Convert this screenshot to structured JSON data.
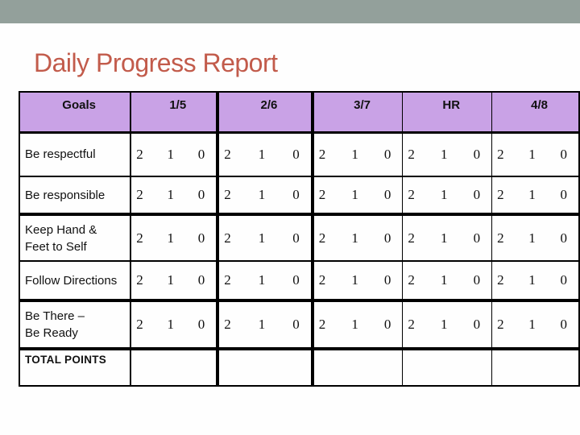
{
  "slide": {
    "title": "Daily Progress Report"
  },
  "table": {
    "header": {
      "goals": "Goals",
      "days": [
        "1/5",
        "2/6",
        "3/7",
        "HR",
        "4/8"
      ]
    },
    "score_options": [
      "2",
      "1",
      "0"
    ],
    "rows": [
      {
        "label": "Be respectful",
        "cells": [
          [
            "2",
            "1",
            "0"
          ],
          [
            "2",
            "1",
            "0"
          ],
          [
            "2",
            "1",
            "0"
          ],
          [
            "2",
            "1",
            "0"
          ],
          [
            "2",
            "1",
            "0"
          ]
        ]
      },
      {
        "label": "Be responsible",
        "cells": [
          [
            "2",
            "1",
            "0"
          ],
          [
            "2",
            "1",
            "0"
          ],
          [
            "2",
            "1",
            "0"
          ],
          [
            "2",
            "1",
            "0"
          ],
          [
            "2",
            "1",
            "0"
          ]
        ]
      },
      {
        "label": "Keep Hand &\nFeet to Self",
        "cells": [
          [
            "2",
            "1",
            "0"
          ],
          [
            "2",
            "1",
            "0"
          ],
          [
            "2",
            "1",
            "0"
          ],
          [
            "2",
            "1",
            "0"
          ],
          [
            "2",
            "1",
            "0"
          ]
        ]
      },
      {
        "label": "Follow Directions",
        "cells": [
          [
            "2",
            "1",
            "0"
          ],
          [
            "2",
            "1",
            "0"
          ],
          [
            "2",
            "1",
            "0"
          ],
          [
            "2",
            "1",
            "0"
          ],
          [
            "2",
            "1",
            "0"
          ]
        ]
      },
      {
        "label": "Be There –\nBe Ready",
        "cells": [
          [
            "2",
            "1",
            "0"
          ],
          [
            "2",
            "1",
            "0"
          ],
          [
            "2",
            "1",
            "0"
          ],
          [
            "2",
            "1",
            "0"
          ],
          [
            "2",
            "1",
            "0"
          ]
        ]
      },
      {
        "label": "TOTAL POINTS",
        "emphasis": "bold",
        "cells": [
          [],
          [],
          [],
          [],
          []
        ]
      }
    ]
  },
  "colors": {
    "accent_band": "#93a09b",
    "title_text": "#c25b4b",
    "header_fill": "#c9a2e6",
    "table_line": "#000000"
  }
}
